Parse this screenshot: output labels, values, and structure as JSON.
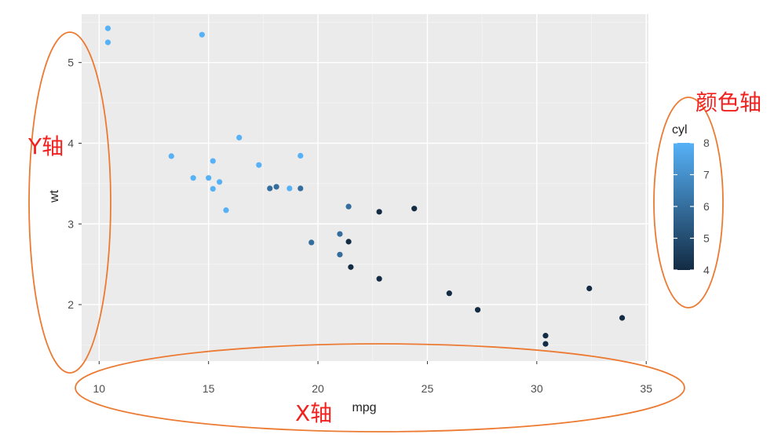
{
  "chart_data": {
    "type": "scatter",
    "xlabel": "mpg",
    "ylabel": "wt",
    "xlim": [
      9.2,
      35.1
    ],
    "ylim": [
      1.3,
      5.6
    ],
    "xticks": [
      10,
      15,
      20,
      25,
      30,
      35
    ],
    "yticks": [
      2,
      3,
      4,
      5
    ],
    "color_var": "cyl",
    "color_range": [
      4,
      8
    ],
    "color_low": "#132b43",
    "color_high": "#56b1f7",
    "legend": {
      "title": "cyl",
      "ticks": [
        4,
        5,
        6,
        7,
        8
      ],
      "position": "right"
    },
    "panel_background": "#ebebeb",
    "grid": true,
    "points": [
      {
        "x": 21.0,
        "y": 2.62,
        "c": 6
      },
      {
        "x": 21.0,
        "y": 2.875,
        "c": 6
      },
      {
        "x": 22.8,
        "y": 2.32,
        "c": 4
      },
      {
        "x": 21.4,
        "y": 3.215,
        "c": 6
      },
      {
        "x": 18.7,
        "y": 3.44,
        "c": 8
      },
      {
        "x": 18.1,
        "y": 3.46,
        "c": 6
      },
      {
        "x": 14.3,
        "y": 3.57,
        "c": 8
      },
      {
        "x": 24.4,
        "y": 3.19,
        "c": 4
      },
      {
        "x": 22.8,
        "y": 3.15,
        "c": 4
      },
      {
        "x": 19.2,
        "y": 3.44,
        "c": 6
      },
      {
        "x": 17.8,
        "y": 3.44,
        "c": 6
      },
      {
        "x": 16.4,
        "y": 4.07,
        "c": 8
      },
      {
        "x": 17.3,
        "y": 3.73,
        "c": 8
      },
      {
        "x": 15.2,
        "y": 3.78,
        "c": 8
      },
      {
        "x": 10.4,
        "y": 5.25,
        "c": 8
      },
      {
        "x": 10.4,
        "y": 5.424,
        "c": 8
      },
      {
        "x": 14.7,
        "y": 5.345,
        "c": 8
      },
      {
        "x": 32.4,
        "y": 2.2,
        "c": 4
      },
      {
        "x": 30.4,
        "y": 1.615,
        "c": 4
      },
      {
        "x": 33.9,
        "y": 1.835,
        "c": 4
      },
      {
        "x": 21.5,
        "y": 2.465,
        "c": 4
      },
      {
        "x": 15.5,
        "y": 3.52,
        "c": 8
      },
      {
        "x": 15.2,
        "y": 3.435,
        "c": 8
      },
      {
        "x": 13.3,
        "y": 3.84,
        "c": 8
      },
      {
        "x": 19.2,
        "y": 3.845,
        "c": 8
      },
      {
        "x": 27.3,
        "y": 1.935,
        "c": 4
      },
      {
        "x": 26.0,
        "y": 2.14,
        "c": 4
      },
      {
        "x": 30.4,
        "y": 1.513,
        "c": 4
      },
      {
        "x": 15.8,
        "y": 3.17,
        "c": 8
      },
      {
        "x": 19.7,
        "y": 2.77,
        "c": 6
      },
      {
        "x": 15.0,
        "y": 3.57,
        "c": 8
      },
      {
        "x": 21.4,
        "y": 2.78,
        "c": 4
      }
    ]
  },
  "annotations": {
    "y_axis": "Y轴",
    "x_axis": "X轴",
    "color_axis": "颜色轴",
    "ellipse_color": "#ec7a32",
    "text_color": "#f0211e"
  }
}
